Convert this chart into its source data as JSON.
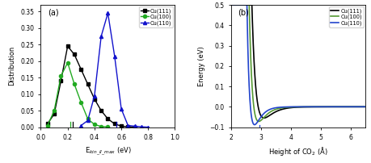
{
  "panel_a": {
    "title": "(a)",
    "xlabel": "E$_{kin\\_II\\_max}$ (eV)",
    "ylabel": "Distribution",
    "xlim": [
      0.0,
      1.0
    ],
    "ylim": [
      0.0,
      0.37
    ],
    "yticks": [
      0.0,
      0.05,
      0.1,
      0.15,
      0.2,
      0.25,
      0.3,
      0.35
    ],
    "xticks": [
      0.0,
      0.2,
      0.4,
      0.6,
      0.8,
      1.0
    ],
    "cu111": {
      "x": [
        0.05,
        0.1,
        0.15,
        0.2,
        0.25,
        0.3,
        0.35,
        0.4,
        0.45,
        0.5,
        0.55,
        0.6,
        0.65,
        0.7
      ],
      "y": [
        0.01,
        0.04,
        0.14,
        0.245,
        0.22,
        0.175,
        0.13,
        0.085,
        0.05,
        0.025,
        0.01,
        0.003,
        0.001,
        0.0
      ],
      "color": "#000000",
      "marker": "s",
      "label": "Cu(111)",
      "vline": 0.237,
      "vline_ymax": 0.015
    },
    "cu100": {
      "x": [
        0.05,
        0.1,
        0.15,
        0.2,
        0.25,
        0.3,
        0.35,
        0.4,
        0.45,
        0.5
      ],
      "y": [
        0.005,
        0.05,
        0.155,
        0.195,
        0.13,
        0.075,
        0.025,
        0.008,
        0.002,
        0.001
      ],
      "color": "#22aa22",
      "marker": "o",
      "label": "Cu(100)",
      "vline": 0.22,
      "vline_ymax": 0.015
    },
    "cu110": {
      "x": [
        0.3,
        0.35,
        0.4,
        0.45,
        0.5,
        0.55,
        0.6,
        0.65,
        0.7,
        0.75,
        0.8
      ],
      "y": [
        0.005,
        0.02,
        0.095,
        0.275,
        0.345,
        0.215,
        0.055,
        0.005,
        0.003,
        0.001,
        0.0
      ],
      "color": "#1111cc",
      "marker": "^",
      "label": "Cu(110)",
      "vline": 0.565,
      "vline_ymax": 0.015
    }
  },
  "panel_b": {
    "title": "(b)",
    "xlabel": "Height of CO$_2$ (Å)",
    "ylabel": "Energy (eV)",
    "xlim": [
      2.0,
      6.5
    ],
    "ylim": [
      -0.1,
      0.5
    ],
    "yticks": [
      -0.1,
      0.0,
      0.1,
      0.2,
      0.3,
      0.4,
      0.5
    ],
    "xticks": [
      2,
      3,
      4,
      5,
      6
    ],
    "cu111": {
      "color": "#000000",
      "label": "Cu(111)",
      "D": 0.055,
      "r_min": 3.1,
      "alpha": 3.5
    },
    "cu100": {
      "color": "#559933",
      "label": "Cu(100)",
      "D": 0.072,
      "r_min": 2.92,
      "alpha": 4.2
    },
    "cu110": {
      "color": "#2244cc",
      "label": "Cu(110)",
      "D": 0.088,
      "r_min": 2.78,
      "alpha": 5.0,
      "vline": 2.95,
      "vline_ymin": -0.088
    }
  }
}
